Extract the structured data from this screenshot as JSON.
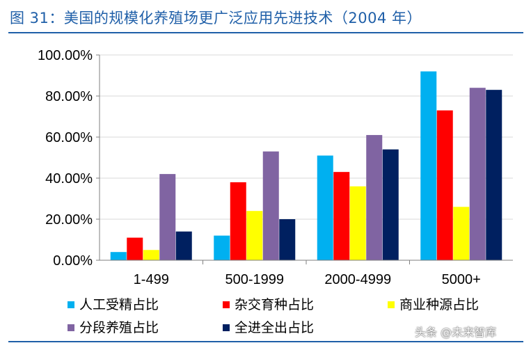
{
  "title": "图 31：美国的规模化养殖场更广泛应用先进技术（2004 年）",
  "watermark": "头条 @未来智库",
  "chart_data": {
    "type": "bar",
    "title": "美国的规模化养殖场更广泛应用先进技术（2004 年）",
    "xlabel": "",
    "ylabel": "",
    "ylim": [
      0,
      100
    ],
    "yticks": [
      "0.00%",
      "20.00%",
      "40.00%",
      "60.00%",
      "80.00%",
      "100.00%"
    ],
    "categories": [
      "1-499",
      "500-1999",
      "2000-4999",
      "5000+"
    ],
    "legend_position": "bottom",
    "series": [
      {
        "name": "人工受精占比",
        "color": "#00b0f0",
        "values": [
          4,
          12,
          51,
          92
        ]
      },
      {
        "name": "杂交育种占比",
        "color": "#ff0000",
        "values": [
          11,
          38,
          43,
          73
        ]
      },
      {
        "name": "商业种源占比",
        "color": "#ffff00",
        "values": [
          5,
          24,
          36,
          26
        ]
      },
      {
        "name": "分段养殖占比",
        "color": "#8064a2",
        "values": [
          42,
          53,
          61,
          84
        ]
      },
      {
        "name": "全进全出占比",
        "color": "#002060",
        "values": [
          14,
          20,
          54,
          83
        ]
      }
    ]
  }
}
